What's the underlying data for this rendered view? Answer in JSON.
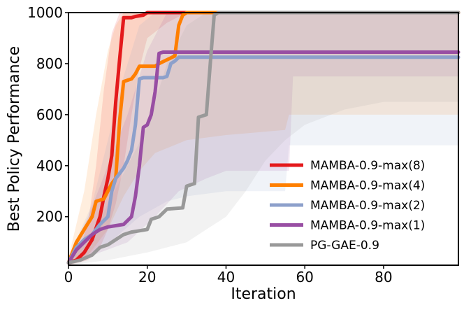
{
  "chart_data": {
    "type": "line",
    "title": "",
    "xlabel": "Iteration",
    "ylabel": "Best Policy Performance",
    "xlim": [
      0,
      99
    ],
    "ylim": [
      10,
      1000
    ],
    "xticks": [
      0,
      20,
      40,
      60,
      80
    ],
    "yticks": [
      200,
      400,
      600,
      800,
      1000
    ],
    "grid": false,
    "legend_position": "lower-right",
    "series": [
      {
        "name": "MAMBA-0.9-max(8)",
        "color": "#e41a1c",
        "points": [
          [
            0,
            20
          ],
          [
            2,
            30
          ],
          [
            4,
            60
          ],
          [
            6,
            110
          ],
          [
            8,
            200
          ],
          [
            9,
            280
          ],
          [
            10,
            350
          ],
          [
            11,
            440
          ],
          [
            12,
            650
          ],
          [
            13,
            820
          ],
          [
            14,
            980
          ],
          [
            15,
            980
          ],
          [
            16,
            980
          ],
          [
            17,
            985
          ],
          [
            19,
            990
          ],
          [
            20,
            1000
          ],
          [
            99,
            1000
          ]
        ],
        "band_upper": [
          [
            0,
            40
          ],
          [
            3,
            80
          ],
          [
            5,
            180
          ],
          [
            7,
            400
          ],
          [
            9,
            700
          ],
          [
            11,
            920
          ],
          [
            13,
            1000
          ],
          [
            99,
            1000
          ]
        ],
        "band_lower": [
          [
            0,
            10
          ],
          [
            5,
            30
          ],
          [
            8,
            80
          ],
          [
            10,
            150
          ],
          [
            12,
            250
          ],
          [
            14,
            400
          ],
          [
            16,
            600
          ],
          [
            18,
            780
          ],
          [
            20,
            900
          ],
          [
            25,
            960
          ],
          [
            30,
            1000
          ],
          [
            99,
            1000
          ]
        ]
      },
      {
        "name": "MAMBA-0.9-max(4)",
        "color": "#ff7f00",
        "points": [
          [
            0,
            20
          ],
          [
            2,
            100
          ],
          [
            4,
            150
          ],
          [
            6,
            200
          ],
          [
            7,
            260
          ],
          [
            9,
            270
          ],
          [
            11,
            330
          ],
          [
            12,
            350
          ],
          [
            13,
            580
          ],
          [
            14,
            730
          ],
          [
            16,
            740
          ],
          [
            17,
            760
          ],
          [
            18,
            790
          ],
          [
            19,
            790
          ],
          [
            22,
            790
          ],
          [
            23,
            800
          ],
          [
            27,
            830
          ],
          [
            28,
            950
          ],
          [
            29,
            990
          ],
          [
            30,
            1000
          ],
          [
            99,
            1000
          ]
        ],
        "band_upper": [
          [
            0,
            40
          ],
          [
            4,
            300
          ],
          [
            7,
            600
          ],
          [
            10,
            850
          ],
          [
            12,
            950
          ],
          [
            14,
            1000
          ],
          [
            99,
            1000
          ]
        ],
        "band_lower": [
          [
            0,
            10
          ],
          [
            5,
            50
          ],
          [
            10,
            150
          ],
          [
            14,
            280
          ],
          [
            18,
            380
          ],
          [
            22,
            450
          ],
          [
            30,
            500
          ],
          [
            40,
            520
          ],
          [
            55,
            540
          ],
          [
            56,
            600
          ],
          [
            99,
            600
          ]
        ]
      },
      {
        "name": "MAMBA-0.9-max(2)",
        "color": "#8da0cb",
        "points": [
          [
            0,
            20
          ],
          [
            2,
            80
          ],
          [
            4,
            110
          ],
          [
            6,
            130
          ],
          [
            8,
            170
          ],
          [
            10,
            200
          ],
          [
            11,
            300
          ],
          [
            12,
            350
          ],
          [
            13,
            370
          ],
          [
            14,
            390
          ],
          [
            15,
            420
          ],
          [
            16,
            460
          ],
          [
            17,
            560
          ],
          [
            18,
            740
          ],
          [
            19,
            745
          ],
          [
            24,
            745
          ],
          [
            25,
            750
          ],
          [
            26,
            800
          ],
          [
            27,
            810
          ],
          [
            28,
            825
          ],
          [
            99,
            825
          ]
        ],
        "band_upper": [
          [
            0,
            40
          ],
          [
            6,
            250
          ],
          [
            10,
            500
          ],
          [
            14,
            750
          ],
          [
            18,
            950
          ],
          [
            22,
            1000
          ],
          [
            99,
            1000
          ]
        ],
        "band_lower": [
          [
            0,
            10
          ],
          [
            6,
            50
          ],
          [
            12,
            120
          ],
          [
            18,
            200
          ],
          [
            25,
            260
          ],
          [
            30,
            280
          ],
          [
            40,
            300
          ],
          [
            55,
            300
          ],
          [
            56,
            480
          ],
          [
            99,
            480
          ]
        ]
      },
      {
        "name": "MAMBA-0.9-max(1)",
        "color": "#984ea3",
        "points": [
          [
            0,
            20
          ],
          [
            2,
            70
          ],
          [
            4,
            100
          ],
          [
            6,
            130
          ],
          [
            8,
            150
          ],
          [
            10,
            160
          ],
          [
            12,
            165
          ],
          [
            14,
            170
          ],
          [
            16,
            200
          ],
          [
            17,
            280
          ],
          [
            18,
            400
          ],
          [
            19,
            550
          ],
          [
            20,
            560
          ],
          [
            21,
            600
          ],
          [
            22,
            690
          ],
          [
            23,
            840
          ],
          [
            24,
            845
          ],
          [
            99,
            845
          ]
        ],
        "band_upper": [
          [
            0,
            40
          ],
          [
            5,
            200
          ],
          [
            10,
            400
          ],
          [
            15,
            600
          ],
          [
            20,
            850
          ],
          [
            25,
            1000
          ],
          [
            99,
            1000
          ]
        ],
        "band_lower": [
          [
            0,
            10
          ],
          [
            8,
            60
          ],
          [
            15,
            100
          ],
          [
            22,
            200
          ],
          [
            28,
            300
          ],
          [
            35,
            350
          ],
          [
            40,
            380
          ],
          [
            56,
            380
          ],
          [
            57,
            750
          ],
          [
            99,
            750
          ]
        ]
      },
      {
        "name": "PG-GAE-0.9",
        "color": "#999999",
        "points": [
          [
            0,
            20
          ],
          [
            3,
            30
          ],
          [
            6,
            50
          ],
          [
            8,
            80
          ],
          [
            10,
            90
          ],
          [
            12,
            110
          ],
          [
            14,
            130
          ],
          [
            16,
            140
          ],
          [
            18,
            145
          ],
          [
            20,
            150
          ],
          [
            21,
            190
          ],
          [
            23,
            200
          ],
          [
            25,
            230
          ],
          [
            29,
            235
          ],
          [
            30,
            320
          ],
          [
            32,
            330
          ],
          [
            33,
            590
          ],
          [
            35,
            600
          ],
          [
            36,
            800
          ],
          [
            37,
            990
          ],
          [
            38,
            1000
          ],
          [
            99,
            1000
          ]
        ],
        "band_upper": [
          [
            0,
            40
          ],
          [
            5,
            100
          ],
          [
            10,
            250
          ],
          [
            15,
            400
          ],
          [
            20,
            550
          ],
          [
            25,
            800
          ],
          [
            30,
            950
          ],
          [
            35,
            1000
          ],
          [
            99,
            1000
          ]
        ],
        "band_lower": [
          [
            0,
            10
          ],
          [
            10,
            30
          ],
          [
            20,
            60
          ],
          [
            30,
            100
          ],
          [
            35,
            150
          ],
          [
            40,
            200
          ],
          [
            45,
            300
          ],
          [
            50,
            420
          ],
          [
            55,
            500
          ],
          [
            60,
            560
          ],
          [
            70,
            620
          ],
          [
            80,
            650
          ],
          [
            99,
            650
          ]
        ]
      }
    ]
  }
}
